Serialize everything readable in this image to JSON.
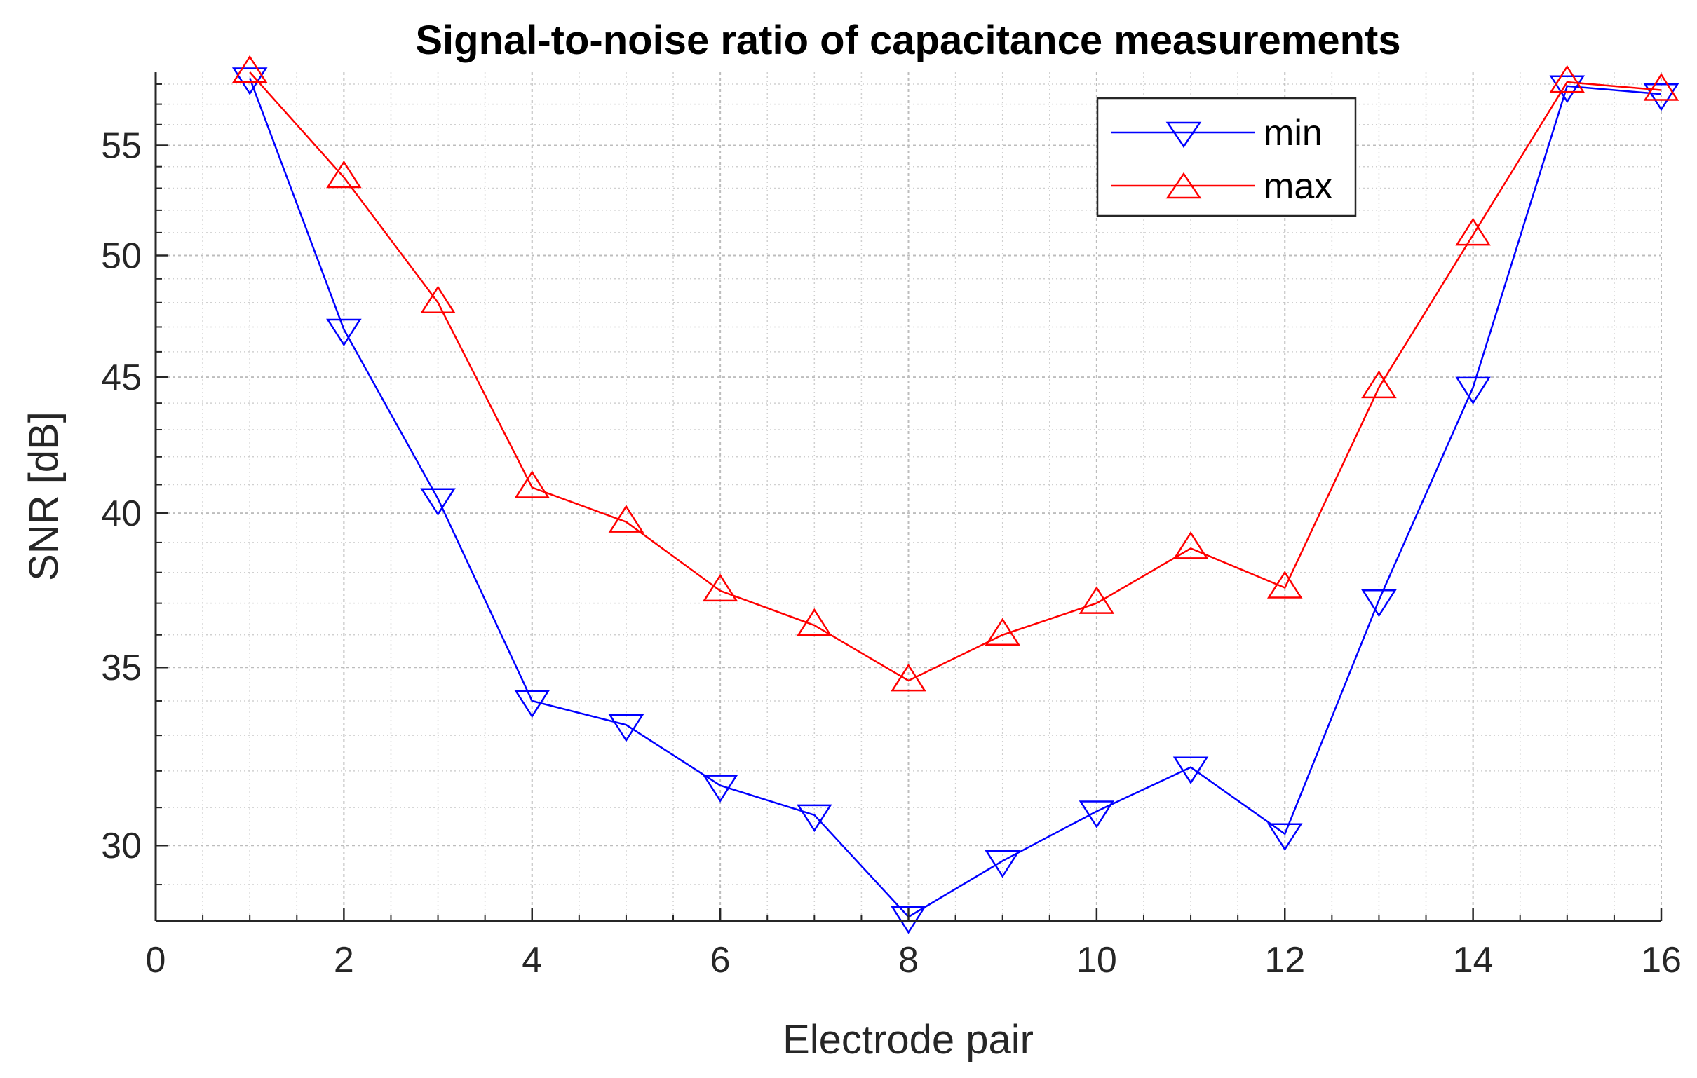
{
  "chart_data": {
    "type": "line",
    "title": "Signal-to-noise ratio of capacitance measurements",
    "xlabel": "Electrode pair",
    "ylabel": "SNR [dB]",
    "xlim": [
      0,
      16
    ],
    "ylim": [
      28.1,
      58.6
    ],
    "yscale": "log",
    "grid": true,
    "minor_grid": true,
    "legend_position": "top-right",
    "x_ticks": [
      0,
      2,
      4,
      6,
      8,
      10,
      12,
      14,
      16
    ],
    "y_ticks": [
      30,
      35,
      40,
      45,
      50,
      55
    ],
    "x": [
      1,
      2,
      3,
      4,
      5,
      6,
      7,
      8,
      9,
      10,
      11,
      12,
      13,
      14,
      15,
      16
    ],
    "series": [
      {
        "name": "min",
        "color": "#0000ff",
        "marker": "triangle-down",
        "values": [
          58.3,
          46.9,
          40.5,
          34.0,
          33.3,
          31.6,
          30.8,
          28.2,
          29.6,
          30.9,
          32.1,
          30.3,
          37.1,
          44.6,
          57.9,
          57.5
        ]
      },
      {
        "name": "max",
        "color": "#ff0000",
        "marker": "triangle-up",
        "values": [
          58.6,
          53.5,
          48.0,
          40.9,
          39.7,
          37.4,
          36.3,
          34.6,
          36.0,
          37.0,
          38.8,
          37.5,
          44.6,
          50.9,
          58.1,
          57.7
        ]
      }
    ]
  }
}
